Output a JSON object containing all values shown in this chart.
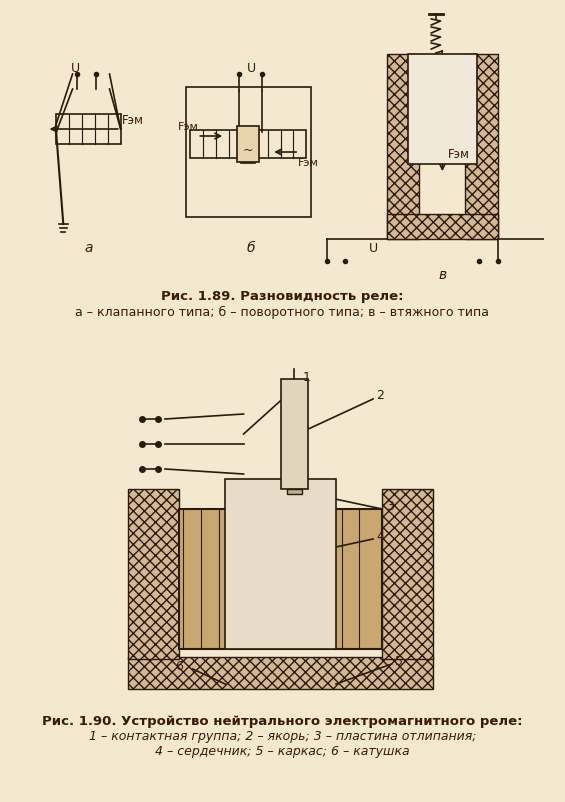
{
  "bg_color": "#f5e8d0",
  "line_color": "#2a1a0a",
  "hatch_color": "#2a1a0a",
  "text_color": "#3a1a0a",
  "caption1_bold": "Рис. 1.89. Разновидность реле:",
  "caption1_line2": "а – клапанного типа; б – поворотного типа; в – втяжного типа",
  "caption2_bold": "Рис. 1.90. Устройство нейтрального электромагнитного реле:",
  "caption2_line2": "1 – контактная группа; 2 – якорь; 3 – пластина отлипания;",
  "caption2_line3": "4 – сердечник; 5 – каркас; 6 – катушка",
  "label_a": "а",
  "label_b": "б",
  "label_v": "в",
  "fem": "Fэм",
  "U": "U"
}
